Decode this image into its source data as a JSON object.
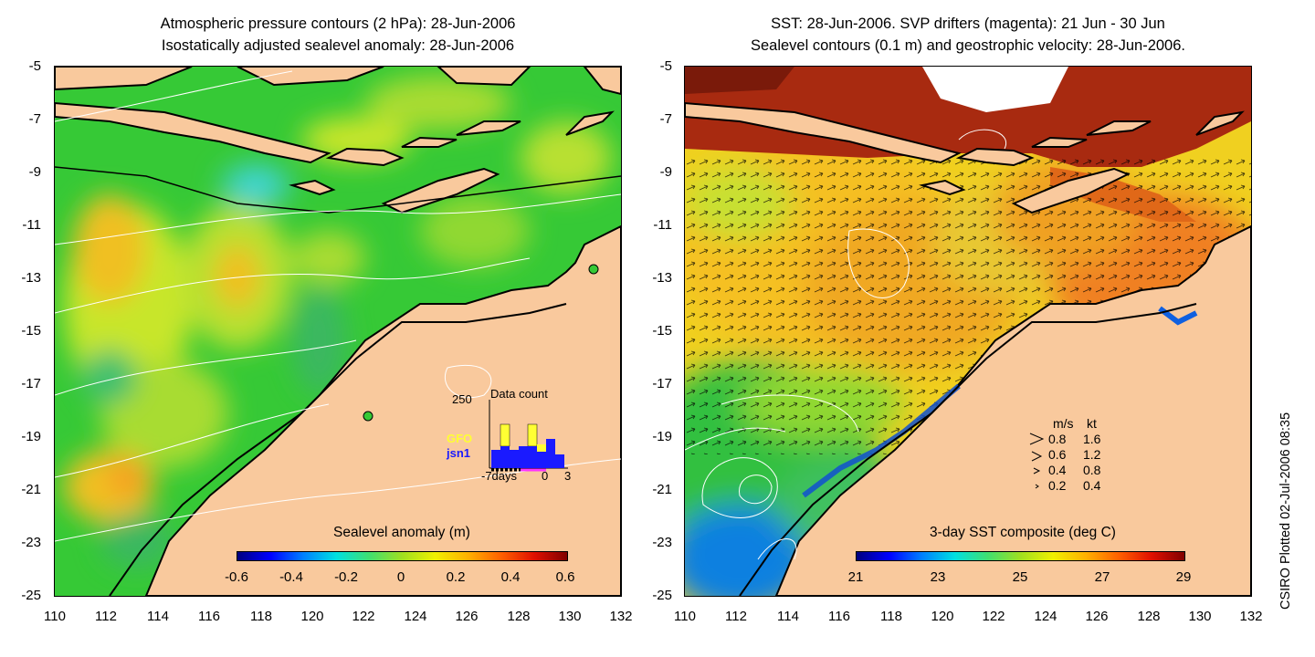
{
  "left_panel": {
    "title_line1": "Atmospheric pressure contours (2 hPa): 28-Jun-2006",
    "title_line2": "Isostatically adjusted sealevel anomaly: 28-Jun-2006",
    "colorbar_title": "Sealevel anomaly (m)",
    "colorbar_labels": [
      "-0.6",
      "-0.4",
      "-0.2",
      "0",
      "0.2",
      "0.4",
      "0.6"
    ],
    "inset": {
      "y_max_label": "250",
      "title": "Data count",
      "series": [
        {
          "name": "GFO",
          "color": "#ffff33"
        },
        {
          "name": "jsn1",
          "color": "#1a1aff"
        }
      ],
      "x_labels": [
        "-7days",
        "0",
        "3"
      ]
    }
  },
  "right_panel": {
    "title_line1": "SST: 28-Jun-2006. SVP drifters (magenta): 21 Jun - 30 Jun",
    "title_line2": "Sealevel contours (0.1 m) and geostrophic velocity: 28-Jun-2006.",
    "colorbar_title": "3-day SST composite (deg C)",
    "colorbar_labels": [
      "21",
      "23",
      "25",
      "27",
      "29"
    ],
    "velocity_legend": {
      "header_ms": "m/s",
      "header_kt": "kt",
      "rows": [
        {
          "ms": "0.8",
          "kt": "1.6"
        },
        {
          "ms": "0.6",
          "kt": "1.2"
        },
        {
          "ms": "0.4",
          "kt": "0.8"
        },
        {
          "ms": "0.2",
          "kt": "0.4"
        }
      ]
    }
  },
  "axes": {
    "y_ticks": [
      "-5",
      "-7",
      "-9",
      "-11",
      "-13",
      "-15",
      "-17",
      "-19",
      "-21",
      "-23",
      "-25"
    ],
    "x_ticks": [
      "110",
      "112",
      "114",
      "116",
      "118",
      "120",
      "122",
      "124",
      "126",
      "128",
      "130",
      "132"
    ]
  },
  "credit": "CSIRO Plotted 02-Jul-2006 08:35",
  "colors": {
    "land": "#f9c99d",
    "sealevel_base": "#36c936",
    "sst_warm": "#b52e14"
  }
}
